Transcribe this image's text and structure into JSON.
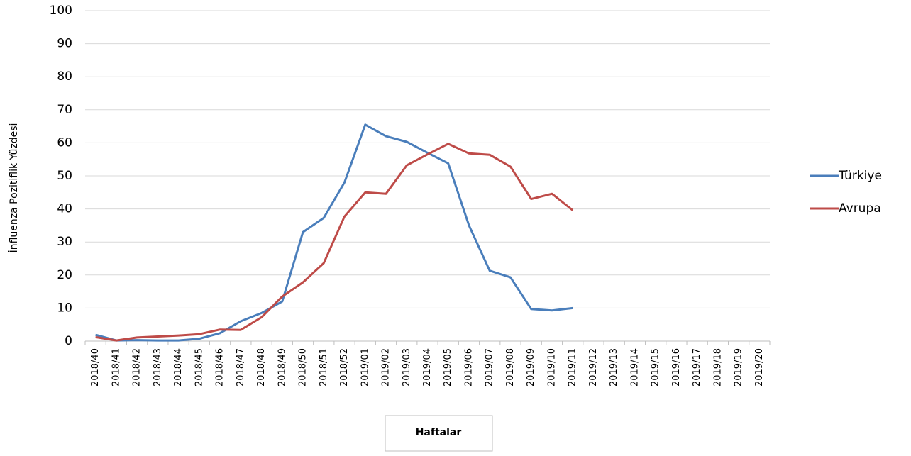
{
  "chart_data": {
    "type": "line",
    "y_label": "İnfluenza Pozitiflik Yüzdesi",
    "x_label": "Haftalar",
    "categories": [
      "2018/40",
      "2018/41",
      "2018/42",
      "2018/43",
      "2018/44",
      "2018/45",
      "2018/46",
      "2018/47",
      "2018/48",
      "2018/49",
      "2018/50",
      "2018/51",
      "2018/52",
      "2019/01",
      "2019/02",
      "2019/03",
      "2019/04",
      "2019/05",
      "2019/06",
      "2019/07",
      "2019/08",
      "2019/09",
      "2019/10",
      "2019/11",
      "2019/12",
      "2019/13",
      "2019/14",
      "2019/15",
      "2019/16",
      "2019/17",
      "2019/18",
      "2019/19",
      "2019/20"
    ],
    "series": [
      {
        "name": "Türkiye",
        "color": "#4a7ebb",
        "values": [
          1.9,
          0.2,
          0.3,
          0.2,
          0.2,
          0.7,
          2.4,
          6.0,
          8.5,
          12,
          33,
          37.3,
          48,
          65.5,
          62,
          60.3,
          57,
          53.8,
          35,
          21.3,
          19.3,
          9.7,
          9.3,
          10,
          null,
          null,
          null,
          null,
          null,
          null,
          null,
          null,
          null
        ]
      },
      {
        "name": "Avrupa",
        "color": "#be4b48",
        "values": [
          1.2,
          0.2,
          1.1,
          1.4,
          1.7,
          2.1,
          3.5,
          3.4,
          7.2,
          13.5,
          17.8,
          23.6,
          37.7,
          45,
          44.6,
          53.2,
          56.5,
          59.7,
          56.8,
          56.4,
          52.8,
          43,
          44.6,
          39.6,
          null,
          null,
          null,
          null,
          null,
          null,
          null,
          null,
          null
        ]
      }
    ],
    "ylim": [
      0,
      100
    ],
    "yticks": [
      0,
      10,
      20,
      30,
      40,
      50,
      60,
      70,
      80,
      90,
      100
    ],
    "grid": true,
    "legend": "right"
  }
}
